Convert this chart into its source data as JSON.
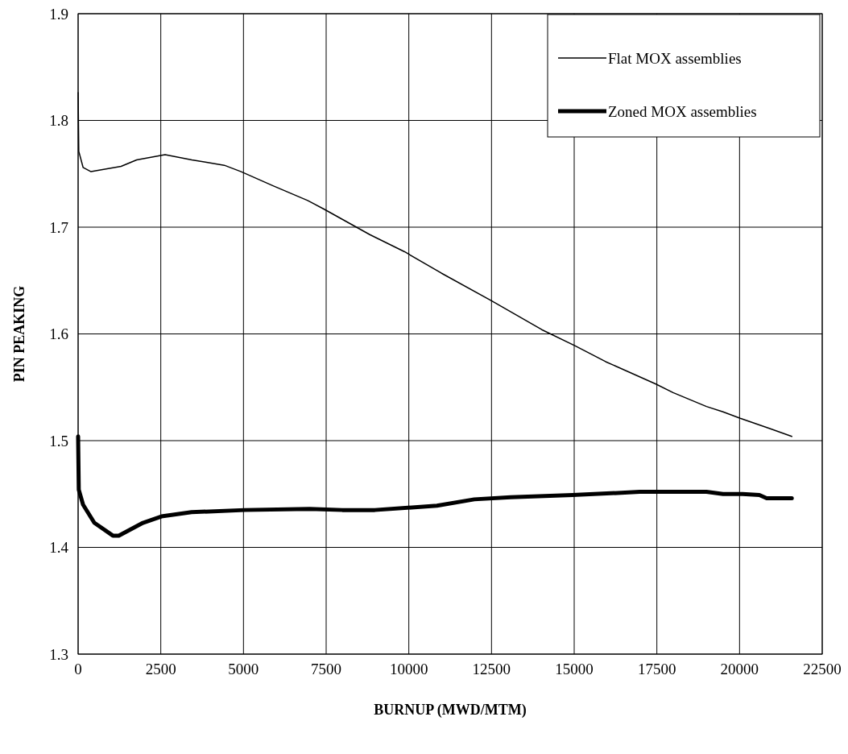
{
  "chart_data": {
    "type": "line",
    "xlabel": "BURNUP (MWD/MTM)",
    "ylabel": "PIN PEAKING",
    "xlim": [
      0,
      22500
    ],
    "ylim": [
      1.3,
      1.9
    ],
    "xticks": [
      0,
      2500,
      5000,
      7500,
      10000,
      12500,
      15000,
      17500,
      20000,
      22500
    ],
    "yticks": [
      1.3,
      1.4,
      1.5,
      1.6,
      1.7,
      1.8,
      1.9
    ],
    "grid": true,
    "legend": "top right",
    "marker": "none",
    "line_style": "solid",
    "series": [
      {
        "name": "Flat MOX assemblies",
        "color": "#000000",
        "x": [
          0,
          20,
          150,
          390,
          1300,
          1770,
          2630,
          3440,
          3850,
          4420,
          4930,
          5880,
          6940,
          7430,
          8820,
          9870,
          10980,
          12500,
          14020,
          15020,
          15950,
          17470,
          17990,
          19000,
          19500,
          20020,
          20950,
          21580
        ],
        "values": [
          1.826,
          1.771,
          1.756,
          1.752,
          1.757,
          1.763,
          1.768,
          1.763,
          1.761,
          1.758,
          1.752,
          1.739,
          1.725,
          1.717,
          1.693,
          1.677,
          1.657,
          1.631,
          1.604,
          1.589,
          1.574,
          1.553,
          1.545,
          1.532,
          1.527,
          1.521,
          1.511,
          1.504
        ]
      },
      {
        "name": "Zoned MOX assemblies",
        "color": "#000000",
        "x": [
          0,
          20,
          150,
          490,
          1050,
          1230,
          1960,
          2520,
          3430,
          5040,
          7000,
          7990,
          8970,
          10850,
          11980,
          13080,
          14950,
          16980,
          19000,
          19500,
          20090,
          20600,
          20820,
          21190,
          21360,
          21580
        ],
        "values": [
          1.504,
          1.454,
          1.44,
          1.423,
          1.411,
          1.411,
          1.423,
          1.429,
          1.433,
          1.435,
          1.436,
          1.435,
          1.435,
          1.439,
          1.445,
          1.447,
          1.449,
          1.452,
          1.452,
          1.45,
          1.45,
          1.449,
          1.446,
          1.446,
          1.446,
          1.446
        ]
      }
    ]
  }
}
